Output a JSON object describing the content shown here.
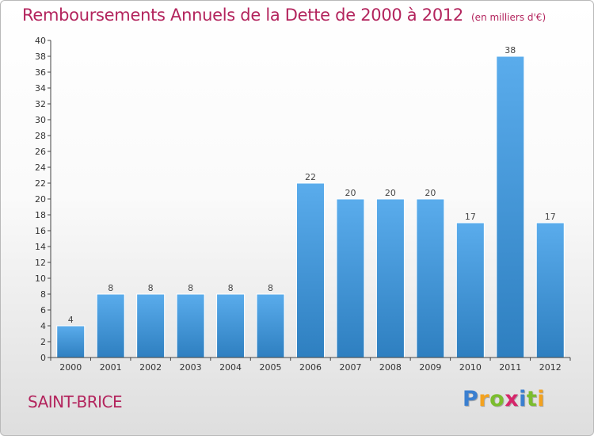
{
  "header": {
    "title": "Remboursements Annuels de la Dette de 2000 à 2012",
    "subtitle": "(en milliers d'€)"
  },
  "footer": {
    "place": "SAINT-BRICE",
    "logo_letters": [
      {
        "ch": "P",
        "color": "#3a7fd0"
      },
      {
        "ch": "r",
        "color": "#f3a21f"
      },
      {
        "ch": "o",
        "color": "#7bbd2e"
      },
      {
        "ch": "x",
        "color": "#d6266a"
      },
      {
        "ch": "i",
        "color": "#3a7fd0"
      },
      {
        "ch": "t",
        "color": "#7bbd2e"
      },
      {
        "ch": "i",
        "color": "#f3a21f"
      }
    ]
  },
  "colors": {
    "bar_top": "#5aacec",
    "bar_bottom": "#2e7fc0",
    "title": "#b3245d",
    "axis": "#444444"
  },
  "chart_data": {
    "type": "bar",
    "title": "Remboursements Annuels de la Dette de 2000 à 2012",
    "subtitle": "(en milliers d'€)",
    "categories": [
      "2000",
      "2001",
      "2002",
      "2003",
      "2004",
      "2005",
      "2006",
      "2007",
      "2008",
      "2009",
      "2010",
      "2011",
      "2012"
    ],
    "values": [
      4,
      8,
      8,
      8,
      8,
      8,
      22,
      20,
      20,
      20,
      17,
      38,
      17
    ],
    "data_labels": [
      "4",
      "8",
      "8",
      "8",
      "8",
      "8",
      "22",
      "20",
      "20",
      "20",
      "17",
      "38",
      "17"
    ],
    "ylim": [
      0,
      40
    ],
    "yticks": [
      0,
      2,
      4,
      6,
      8,
      10,
      12,
      14,
      16,
      18,
      20,
      22,
      24,
      26,
      28,
      30,
      32,
      34,
      36,
      38,
      40
    ],
    "xlabel": "",
    "ylabel": "",
    "grid": false,
    "legend": "none"
  }
}
